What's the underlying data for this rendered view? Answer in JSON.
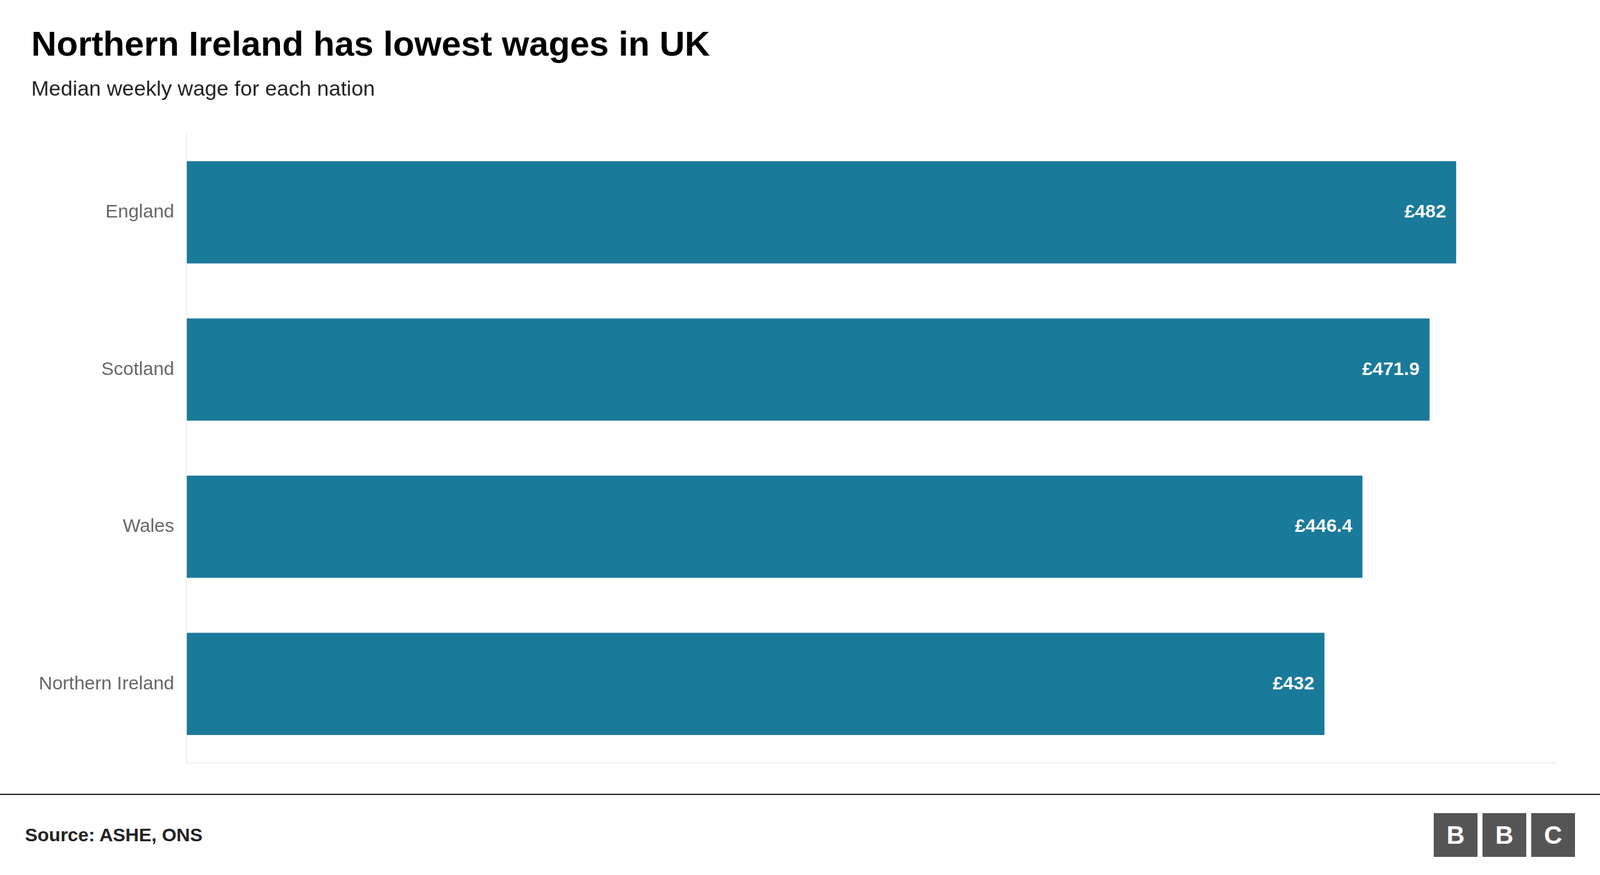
{
  "chart_data": {
    "type": "bar",
    "orientation": "horizontal",
    "title": "Northern Ireland has lowest wages in UK",
    "subtitle": "Median weekly wage for each nation",
    "categories": [
      "Northern Ireland",
      "Wales",
      "Scotland",
      "England"
    ],
    "values": [
      432,
      446.4,
      471.9,
      482
    ],
    "value_labels": [
      "£432",
      "£446.4",
      "£471.9",
      "£482"
    ],
    "data_labels": true,
    "color": "#1a7a9a",
    "xlim": [
      0,
      520
    ],
    "tick_labels": "y",
    "grid": false,
    "annotations": [
      "Source: ASHE, ONS",
      "BBC"
    ]
  }
}
